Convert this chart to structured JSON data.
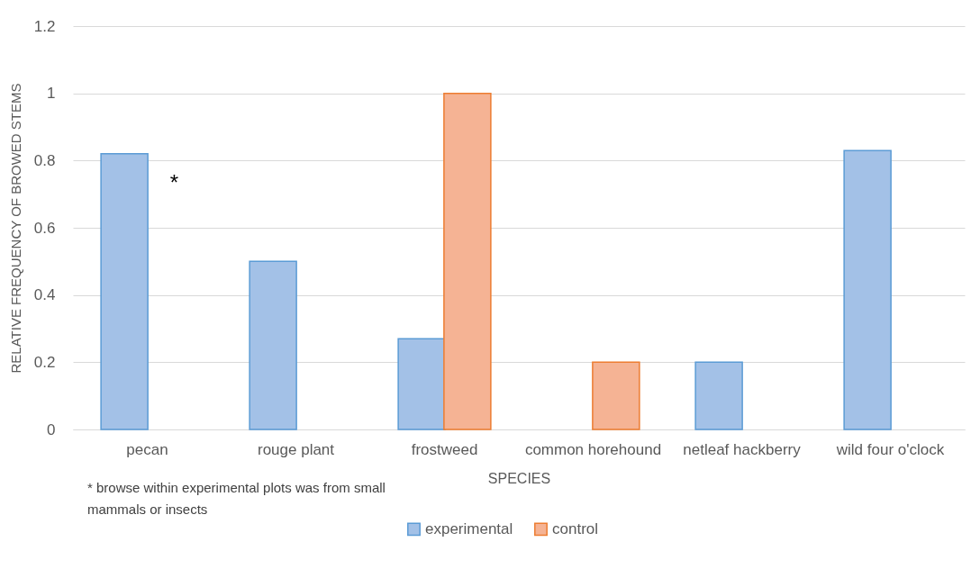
{
  "chart_data": {
    "type": "bar",
    "xlabel": "SPECIES",
    "ylabel": "RELATIVE FREQUENCY OF BROWED STEMS",
    "categories": [
      "pecan",
      "rouge plant",
      "frostweed",
      "common horehound",
      "netleaf hackberry",
      "wild four o'clock"
    ],
    "series": [
      {
        "name": "experimental",
        "color": "#a3c1e7",
        "values": [
          0.82,
          0.5,
          0.27,
          null,
          0.2,
          0.83
        ]
      },
      {
        "name": "control",
        "color": "#f5b394",
        "values": [
          null,
          null,
          1,
          0.2,
          null,
          null
        ]
      }
    ],
    "ylim": [
      0,
      1.2
    ],
    "yticks": [
      0,
      0.2,
      0.4,
      0.6,
      0.8,
      1,
      1.2
    ],
    "grid": "y",
    "legend": "bottom",
    "annotations": [
      {
        "text": "*",
        "x": "pecan",
        "y": 0.73
      },
      "* browse within experimental plots was from small mammals or insects"
    ]
  }
}
